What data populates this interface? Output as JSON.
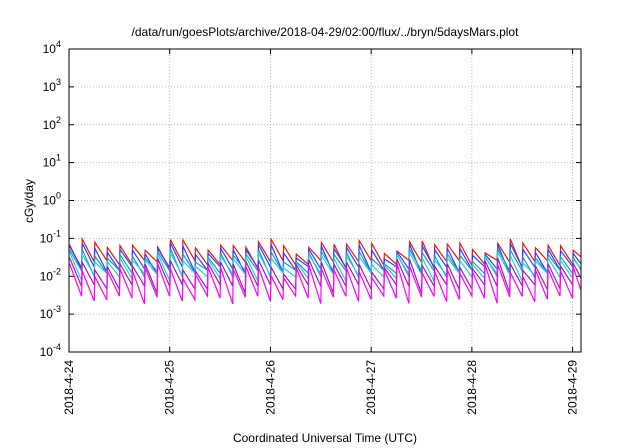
{
  "chart_data": {
    "type": "line",
    "title": "/data/run/goesPlots/archive/2018-04-29/02:00/flux/../bryn/5daysMars.plot",
    "xlabel": "Coordinated Universal Time (UTC)",
    "ylabel": "cGy/day",
    "scale": {
      "y": "log"
    },
    "ylim_exponents": [
      -4,
      4
    ],
    "xlim_days": [
      "2018-04-24",
      "2018-04-29 02:00"
    ],
    "grid": true,
    "y_ticks": [
      {
        "exp": -4,
        "label": "10",
        "sup": "-4"
      },
      {
        "exp": -3,
        "label": "10",
        "sup": "-3"
      },
      {
        "exp": -2,
        "label": "10",
        "sup": "-2"
      },
      {
        "exp": -1,
        "label": "10",
        "sup": "-1"
      },
      {
        "exp": 0,
        "label": "10",
        "sup": "0"
      },
      {
        "exp": 1,
        "label": "10",
        "sup": "1"
      },
      {
        "exp": 2,
        "label": "10",
        "sup": "2"
      },
      {
        "exp": 3,
        "label": "10",
        "sup": "3"
      },
      {
        "exp": 4,
        "label": "10",
        "sup": "4"
      }
    ],
    "x_ticks": [
      {
        "day": 0,
        "label": "2018-4-24"
      },
      {
        "day": 1,
        "label": "2018-4-25"
      },
      {
        "day": 2,
        "label": "2018-4-26"
      },
      {
        "day": 3,
        "label": "2018-4-27"
      },
      {
        "day": 4,
        "label": "2018-4-28"
      },
      {
        "day": 5,
        "label": "2018-4-29"
      }
    ],
    "peak_period_hours": 3,
    "series": [
      {
        "color": "#e8190c",
        "peak_cgy_day": 0.09,
        "trough_cgy_day": 0.022
      },
      {
        "color": "#3a3aff",
        "peak_cgy_day": 0.07,
        "trough_cgy_day": 0.015
      },
      {
        "color": "#2f8fd0",
        "peak_cgy_day": 0.05,
        "trough_cgy_day": 0.012
      },
      {
        "color": "#22d4d4",
        "peak_cgy_day": 0.04,
        "trough_cgy_day": 0.01
      },
      {
        "color": "#9a1fb0",
        "peak_cgy_day": 0.028,
        "trough_cgy_day": 0.005
      },
      {
        "color": "#ff00ff",
        "peak_cgy_day": 0.02,
        "trough_cgy_day": 0.0025
      }
    ]
  }
}
